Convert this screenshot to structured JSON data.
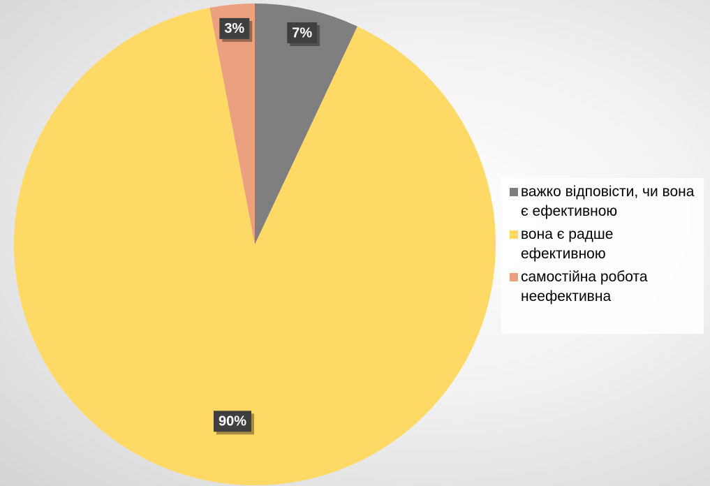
{
  "chart_data": {
    "type": "pie",
    "series": [
      {
        "name": "важко відповісти, чи вона є ефективною",
        "color": "#7f7f7f",
        "values": [
          7
        ]
      },
      {
        "name": "вона є радше ефективною",
        "color": "#ffd966",
        "values": [
          90
        ]
      },
      {
        "name": "самостійна робота неефективна",
        "color": "#eba07f",
        "values": [
          3
        ]
      }
    ],
    "value_labels": [
      "7%",
      "90%",
      "3%"
    ]
  }
}
